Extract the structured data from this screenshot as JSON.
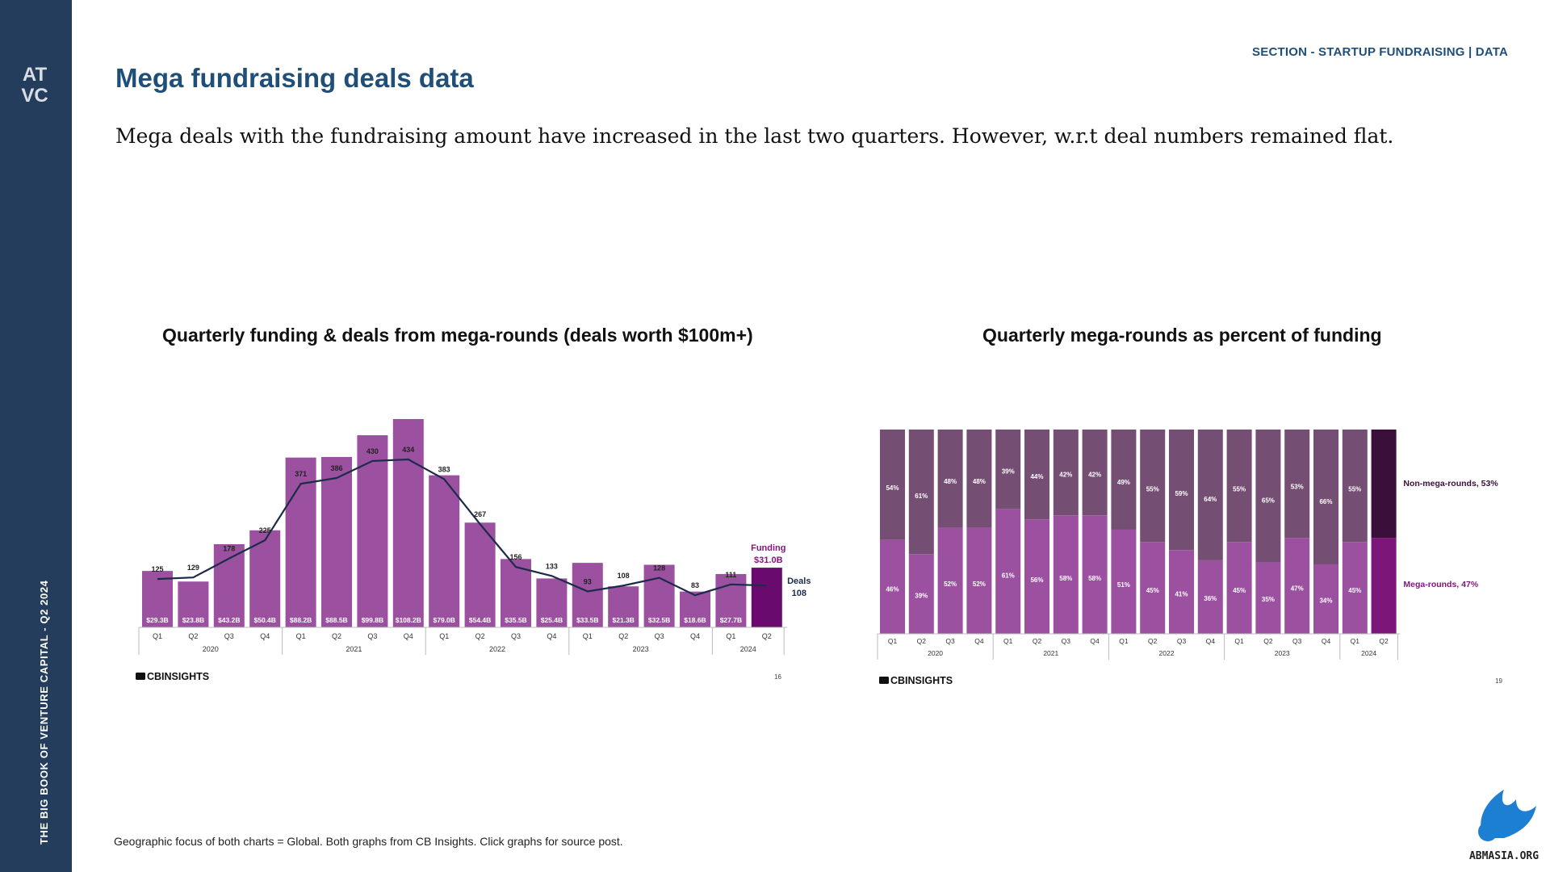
{
  "sidebar": {
    "logo_text": "ATVC",
    "vertical_text": "THE BIG BOOK OF VENTURE CAPITAL - Q2 2024"
  },
  "header": {
    "section": "SECTION - STARTUP FUNDRAISING | DATA",
    "title": "Mega fundraising deals data",
    "subtitle": "Mega deals with the fundraising amount have increased in the last two quarters. However, w.r.t deal numbers remained flat."
  },
  "chart1": {
    "heading": "Quarterly funding & deals from mega-rounds (deals worth $100m+)"
  },
  "chart2": {
    "heading": "Quarterly mega-rounds as percent of funding"
  },
  "footnote": "Geographic focus of both charts = Global. Both graphs from CB Insights. Click graphs for source post.",
  "watermark": "ABMASIA.ORG",
  "colors": {
    "navy": "#243d5c",
    "title_blue": "#1f4e79",
    "bar_purple": "#9b51a0",
    "bar_highlight": "#6b0a6e",
    "non_mega": "#744f73",
    "non_mega_highlight": "#3a0f3a",
    "mega_highlight": "#7d1679"
  },
  "chart_data": [
    {
      "type": "bar",
      "brand": "CBINSIGHTS",
      "page_number": "16",
      "categories": [
        "Q1",
        "Q2",
        "Q3",
        "Q4",
        "Q1",
        "Q2",
        "Q3",
        "Q4",
        "Q1",
        "Q2",
        "Q3",
        "Q4",
        "Q1",
        "Q2",
        "Q3",
        "Q4",
        "Q1",
        "Q2"
      ],
      "years": [
        {
          "label": "2020",
          "span": 4
        },
        {
          "label": "2021",
          "span": 4
        },
        {
          "label": "2022",
          "span": 4
        },
        {
          "label": "2023",
          "span": 4
        },
        {
          "label": "2024",
          "span": 2
        }
      ],
      "series": [
        {
          "name": "Funding",
          "type": "bar",
          "values": [
            29.3,
            23.8,
            43.2,
            50.4,
            88.2,
            88.5,
            99.8,
            108.2,
            79.0,
            54.4,
            35.5,
            25.4,
            33.5,
            21.3,
            32.5,
            18.6,
            27.7,
            31.0
          ],
          "labels": [
            "$29.3B",
            "$23.8B",
            "$43.2B",
            "$50.4B",
            "$88.2B",
            "$88.5B",
            "$99.8B",
            "$108.2B",
            "$79.0B",
            "$54.4B",
            "$35.5B",
            "$25.4B",
            "$33.5B",
            "$21.3B",
            "$32.5B",
            "$18.6B",
            "$27.7B",
            ""
          ]
        },
        {
          "name": "Deals",
          "type": "line",
          "values": [
            125,
            129,
            178,
            225,
            371,
            386,
            430,
            434,
            383,
            267,
            156,
            133,
            93,
            108,
            128,
            83,
            111,
            108
          ],
          "labels": [
            "125",
            "129",
            "178",
            "225",
            "371",
            "386",
            "430",
            "434",
            "383",
            "267",
            "156",
            "133",
            "93",
            "108",
            "128",
            "83",
            "111",
            ""
          ]
        }
      ],
      "annotations": {
        "funding_label": "Funding",
        "funding_value": "$31.0B",
        "deals_label": "Deals",
        "deals_value": "108"
      }
    },
    {
      "type": "bar",
      "stacked": true,
      "brand": "CBINSIGHTS",
      "page_number": "19",
      "categories": [
        "Q1",
        "Q2",
        "Q3",
        "Q4",
        "Q1",
        "Q2",
        "Q3",
        "Q4",
        "Q1",
        "Q2",
        "Q3",
        "Q4",
        "Q1",
        "Q2",
        "Q3",
        "Q4",
        "Q1",
        "Q2"
      ],
      "years": [
        {
          "label": "2020",
          "span": 4
        },
        {
          "label": "2021",
          "span": 4
        },
        {
          "label": "2022",
          "span": 4
        },
        {
          "label": "2023",
          "span": 4
        },
        {
          "label": "2024",
          "span": 2
        }
      ],
      "series": [
        {
          "name": "Mega-rounds",
          "values": [
            46,
            39,
            52,
            52,
            61,
            56,
            58,
            58,
            51,
            45,
            41,
            36,
            45,
            35,
            47,
            34,
            45,
            47
          ],
          "labels": [
            "46%",
            "39%",
            "52%",
            "52%",
            "61%",
            "56%",
            "58%",
            "58%",
            "51%",
            "45%",
            "41%",
            "36%",
            "45%",
            "35%",
            "47%",
            "34%",
            "45%",
            ""
          ]
        },
        {
          "name": "Non-mega-rounds",
          "values": [
            54,
            61,
            48,
            48,
            39,
            44,
            42,
            42,
            49,
            55,
            59,
            64,
            55,
            65,
            53,
            66,
            55,
            53
          ],
          "labels": [
            "54%",
            "61%",
            "48%",
            "48%",
            "39%",
            "44%",
            "42%",
            "42%",
            "49%",
            "55%",
            "59%",
            "64%",
            "55%",
            "65%",
            "53%",
            "66%",
            "55%",
            ""
          ]
        }
      ],
      "annotations": {
        "non_mega_text": "Non-mega-rounds, 53%",
        "mega_text": "Mega-rounds, 47%"
      }
    }
  ]
}
